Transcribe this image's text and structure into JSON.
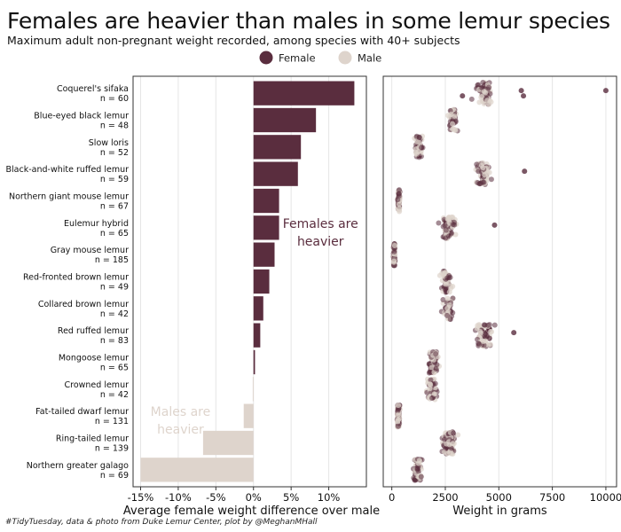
{
  "title": "Females are heavier than males in some lemur species",
  "subtitle": "Maximum adult non-pregnant weight recorded, among species with 40+ subjects",
  "caption": "#TidyTuesday, data & photo from Duke Lemur Center, plot by @MeghanMHall",
  "legend": {
    "items": [
      {
        "label": "Female",
        "color": "#5a2d3e"
      },
      {
        "label": "Male",
        "color": "#ded4cc"
      }
    ]
  },
  "colors": {
    "female": "#5a2d3e",
    "male": "#ded4cc",
    "grid": "#e6e6e6",
    "frame": "#333333"
  },
  "chart_data": [
    {
      "type": "bar",
      "orientation": "horizontal",
      "xlabel": "Average female weight difference over male",
      "xlim": [
        -16,
        15
      ],
      "xticks": [
        -15,
        -10,
        -5,
        0,
        5,
        10
      ],
      "xtick_labels": [
        "-15%",
        "-10%",
        "-5%",
        "0%",
        "5%",
        "10%"
      ],
      "grid": true,
      "annotations": [
        {
          "text": [
            "Females are",
            "heavier"
          ],
          "x": 8.9,
          "category": "Eulemur hybrid",
          "color": "#5a2d3e"
        },
        {
          "text": [
            "Males are",
            "heavier"
          ],
          "x": -9.7,
          "category": "Fat-tailed dwarf lemur",
          "color": "#ded4cc"
        }
      ],
      "categories": [
        "Coquerel's sifaka",
        "Blue-eyed black lemur",
        "Slow loris",
        "Black-and-white ruffed lemur",
        "Northern giant mouse lemur",
        "Eulemur hybrid",
        "Gray mouse lemur",
        "Red-fronted brown lemur",
        "Collared brown lemur",
        "Red ruffed lemur",
        "Mongoose lemur",
        "Crowned lemur",
        "Fat-tailed dwarf lemur",
        "Ring-tailed lemur",
        "Northern greater galago"
      ],
      "n_labels": [
        "n = 60",
        "n = 48",
        "n = 52",
        "n = 59",
        "n = 67",
        "n = 65",
        "n = 185",
        "n = 49",
        "n = 42",
        "n = 83",
        "n = 65",
        "n = 42",
        "n = 131",
        "n = 139",
        "n = 69"
      ],
      "values": [
        13.4,
        8.3,
        6.3,
        5.9,
        3.4,
        3.4,
        2.8,
        2.1,
        1.3,
        0.9,
        0.2,
        -0.1,
        -1.3,
        -6.7,
        -15.0
      ]
    },
    {
      "type": "scatter",
      "style": "jitter-strip",
      "xlabel": "Weight in grams",
      "xlim": [
        -400,
        10500
      ],
      "xticks": [
        0,
        2500,
        5000,
        7500,
        10000
      ],
      "xtick_labels": [
        "0",
        "2500",
        "5000",
        "7500",
        "10000"
      ],
      "grid": true,
      "series": [
        {
          "name": "Female",
          "color": "#5a2d3e",
          "opacity": 0.55
        },
        {
          "name": "Male",
          "color": "#ded4cc",
          "opacity": 0.7
        }
      ],
      "strips": [
        {
          "category": "Coquerel's sifaka",
          "center": 4300,
          "spread": 850,
          "n": 60,
          "outliers": [
            10000,
            6150,
            6050,
            3300
          ]
        },
        {
          "category": "Blue-eyed black lemur",
          "center": 2850,
          "spread": 380,
          "n": 48,
          "outliers": []
        },
        {
          "category": "Slow loris",
          "center": 1250,
          "spread": 330,
          "n": 52,
          "outliers": []
        },
        {
          "category": "Black-and-white ruffed lemur",
          "center": 4250,
          "spread": 650,
          "n": 59,
          "outliers": [
            6200
          ]
        },
        {
          "category": "Northern giant mouse lemur",
          "center": 330,
          "spread": 90,
          "n": 67,
          "outliers": []
        },
        {
          "category": "Eulemur hybrid",
          "center": 2650,
          "spread": 700,
          "n": 65,
          "outliers": [
            4800
          ]
        },
        {
          "category": "Gray mouse lemur",
          "center": 110,
          "spread": 70,
          "n": 185,
          "outliers": []
        },
        {
          "category": "Red-fronted brown lemur",
          "center": 2500,
          "spread": 550,
          "n": 49,
          "outliers": []
        },
        {
          "category": "Collared brown lemur",
          "center": 2600,
          "spread": 550,
          "n": 42,
          "outliers": []
        },
        {
          "category": "Red ruffed lemur",
          "center": 4300,
          "spread": 750,
          "n": 83,
          "outliers": [
            5700
          ]
        },
        {
          "category": "Mongoose lemur",
          "center": 1950,
          "spread": 450,
          "n": 65,
          "outliers": []
        },
        {
          "category": "Crowned lemur",
          "center": 1850,
          "spread": 450,
          "n": 42,
          "outliers": []
        },
        {
          "category": "Fat-tailed dwarf lemur",
          "center": 310,
          "spread": 100,
          "n": 131,
          "outliers": []
        },
        {
          "category": "Ring-tailed lemur",
          "center": 2700,
          "spread": 550,
          "n": 139,
          "outliers": []
        },
        {
          "category": "Northern greater galago",
          "center": 1200,
          "spread": 380,
          "n": 69,
          "outliers": []
        }
      ]
    }
  ]
}
